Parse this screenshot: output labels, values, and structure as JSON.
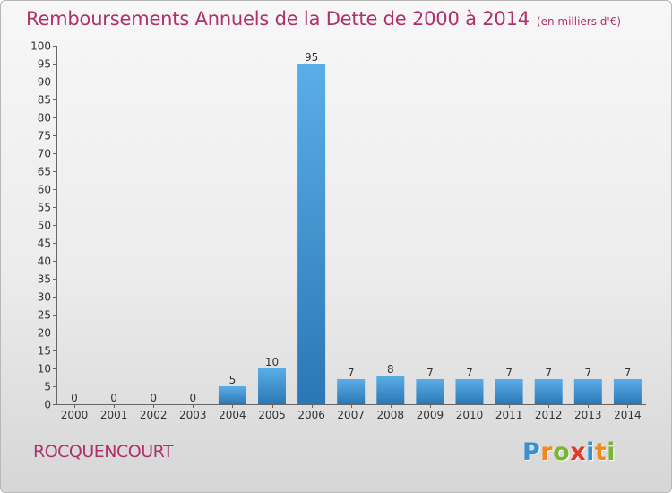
{
  "title": "Remboursements Annuels de la Dette de 2000 à 2014",
  "unit": "(en milliers d'€)",
  "commune": "ROCQUENCOURT",
  "logo": {
    "letters": [
      "P",
      "r",
      "o",
      "x",
      "i",
      "t",
      "i"
    ],
    "colors": [
      "#3a8fd0",
      "#f08a1c",
      "#7ab631",
      "#e03a2c",
      "#3a8fd0",
      "#f08a1c",
      "#7ab631"
    ]
  },
  "colors": {
    "title": "#b0306a",
    "bar_light": "#5aaee8",
    "bar_dark": "#2b77b5"
  },
  "chart_data": {
    "type": "bar",
    "title": "Remboursements Annuels de la Dette de 2000 à 2014",
    "subtitle": "(en milliers d'€)",
    "xlabel": "",
    "ylabel": "",
    "categories": [
      "2000",
      "2001",
      "2002",
      "2003",
      "2004",
      "2005",
      "2006",
      "2007",
      "2008",
      "2009",
      "2010",
      "2011",
      "2012",
      "2013",
      "2014"
    ],
    "values": [
      0,
      0,
      0,
      0,
      5,
      10,
      95,
      7,
      8,
      7,
      7,
      7,
      7,
      7,
      7
    ],
    "ylim": [
      0,
      100
    ],
    "yticks": [
      0,
      5,
      10,
      15,
      20,
      25,
      30,
      35,
      40,
      45,
      50,
      55,
      60,
      65,
      70,
      75,
      80,
      85,
      90,
      95,
      100
    ],
    "grid": false,
    "data_labels": true
  }
}
